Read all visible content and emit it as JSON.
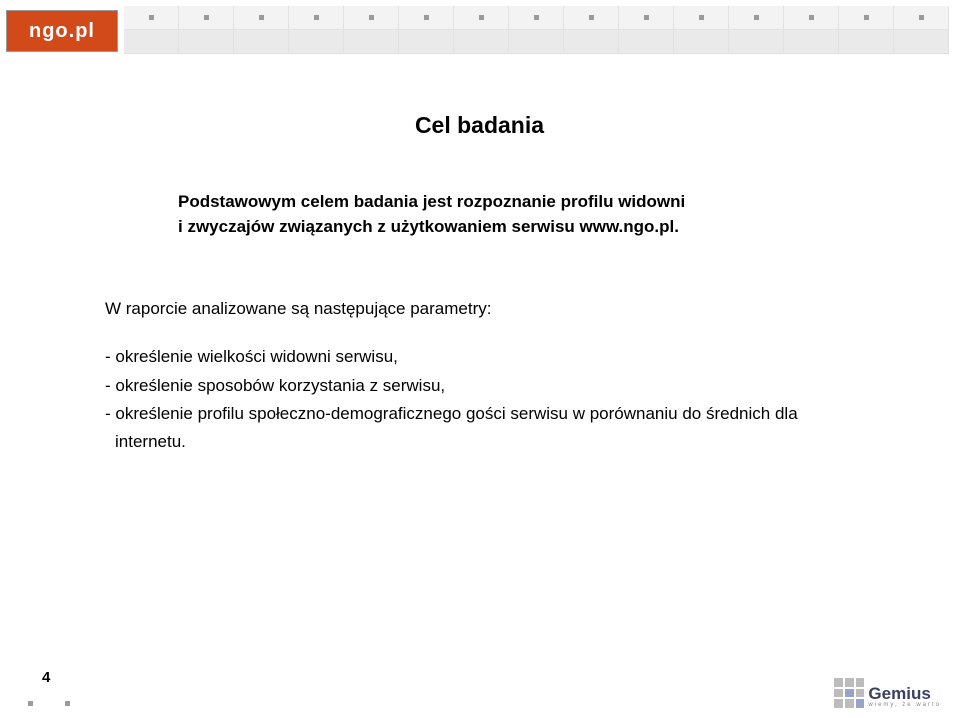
{
  "header": {
    "logo_text": "ngo.pl",
    "logo_bg": "#d24a1a",
    "grid_cols": 15,
    "dot_color": "#9a9a9a",
    "row1_bg": "#f3f3f3",
    "row2_bg": "#eaeaea"
  },
  "title": "Cel badania",
  "intro": {
    "line1": "Podstawowym celem badania jest rozpoznanie profilu widowni",
    "line2": "i zwyczajów związanych z użytkowaniem serwisu www.ngo.pl."
  },
  "body": {
    "lead": "W raporcie analizowane są następujące parametry:",
    "bullets": [
      "- określenie wielkości widowni serwisu,",
      "- określenie sposobów korzystania z serwisu,",
      "- określenie profilu społeczno-demograficznego gości serwisu w porównaniu do średnich dla"
    ],
    "bullet_tail": "internetu."
  },
  "footer": {
    "page_number": "4",
    "gemius_name": "Gemius",
    "gemius_tagline": "wiemy, że warto"
  },
  "colors": {
    "text": "#000000",
    "bg": "#ffffff",
    "gemius_blue": "#3a3f63",
    "gemius_square": "#bcbcbc",
    "gemius_square_hl": "#9aa2c9"
  },
  "typography": {
    "title_size_pt": 17,
    "body_size_pt": 13,
    "font_family": "Arial"
  }
}
